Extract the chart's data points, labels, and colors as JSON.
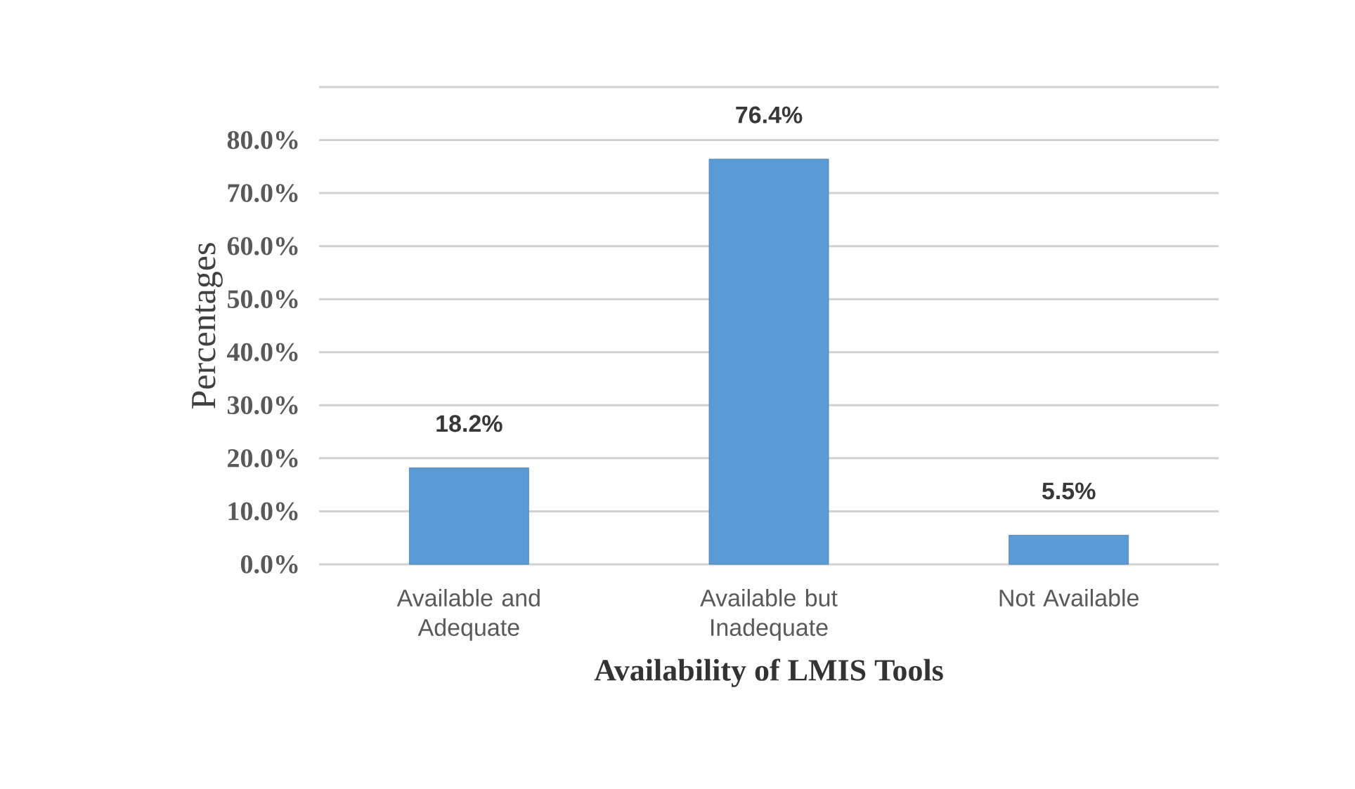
{
  "chart_data": {
    "type": "bar",
    "xlabel": "Availability of LMIS Tools",
    "ylabel": "Percentages",
    "categories": [
      "Available and Adequate",
      "Available but Inadequate",
      "Not Available"
    ],
    "values": [
      18.2,
      76.4,
      5.5
    ],
    "color": "#5b9bd5",
    "value_labels": [
      "18.2%",
      "76.4%",
      "5.5%"
    ],
    "ylim": [
      0,
      90
    ],
    "yticks": [
      {
        "value": 0,
        "label": "0.0%"
      },
      {
        "value": 10,
        "label": "10.0%"
      },
      {
        "value": 20,
        "label": "20.0%"
      },
      {
        "value": 30,
        "label": "30.0%"
      },
      {
        "value": 40,
        "label": "40.0%"
      },
      {
        "value": 50,
        "label": "50.0%"
      },
      {
        "value": 60,
        "label": "60.0%"
      },
      {
        "value": 70,
        "label": "70.0%"
      },
      {
        "value": 80,
        "label": "80.0%"
      },
      {
        "value": 90,
        "label": null
      }
    ],
    "grid": "y"
  }
}
